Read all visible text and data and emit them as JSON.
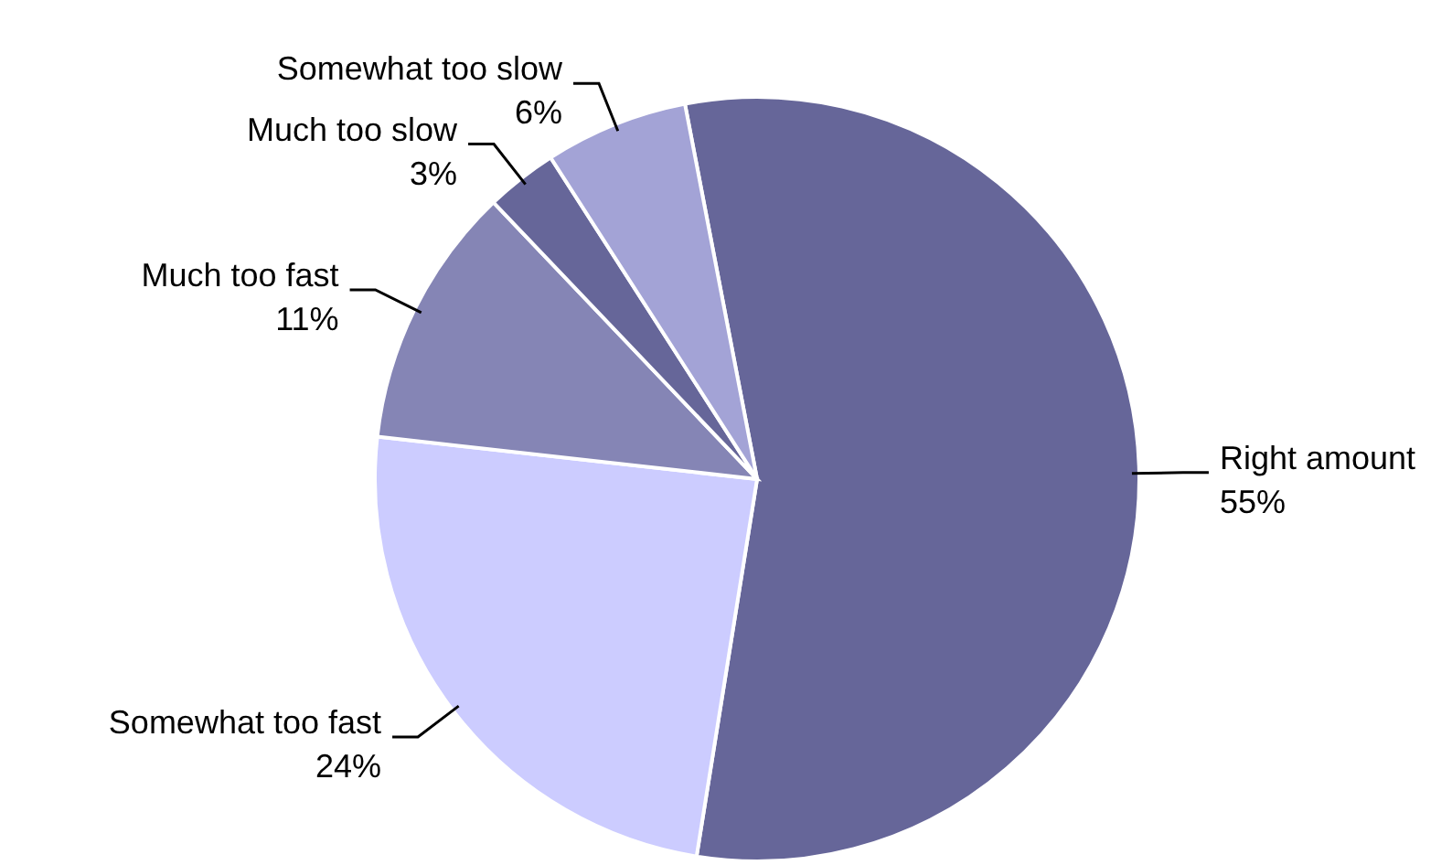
{
  "chart_data": {
    "type": "pie",
    "categories": [
      "Right amount",
      "Somewhat too fast",
      "Much too fast",
      "Much too slow",
      "Somewhat too slow"
    ],
    "values": [
      55,
      24,
      11,
      3,
      6
    ],
    "value_labels": [
      "55%",
      "24%",
      "11%",
      "3%",
      "6%"
    ],
    "colors": [
      "#666699",
      "#ccccff",
      "#8585b5",
      "#666699",
      "#a3a3d6"
    ]
  }
}
